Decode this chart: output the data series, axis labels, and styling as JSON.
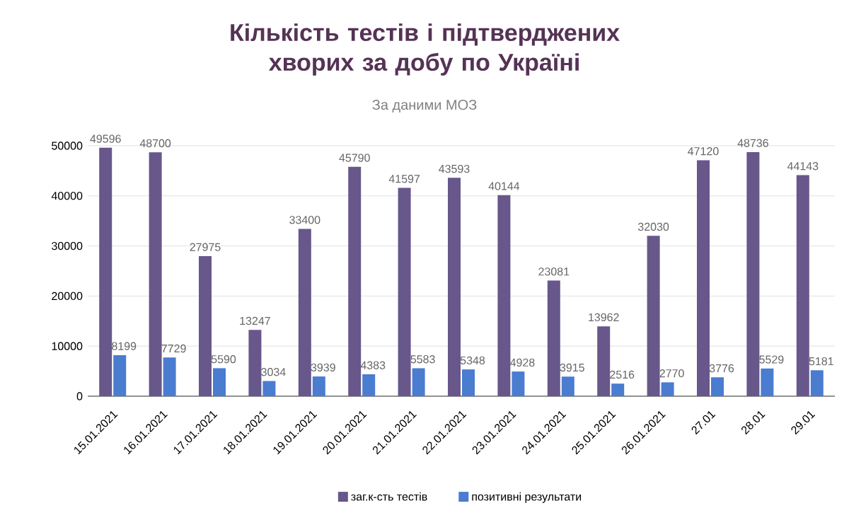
{
  "chart_data": {
    "type": "bar",
    "title": "Кількість тестів і підтверджених хворих за добу по Україні",
    "subtitle": "За даними МОЗ",
    "categories": [
      "15.01.2021",
      "16.01.2021",
      "17.01.2021",
      "18.01.2021",
      "19.01.2021",
      "20.01.2021",
      "21.01.2021",
      "22.01.2021",
      "23.01.2021",
      "24.01.2021",
      "25.01.2021",
      "26.01.2021",
      "27.01",
      "28.01",
      "29.01"
    ],
    "series": [
      {
        "name": "заг.к-сть тестів",
        "color": "#67578a",
        "values": [
          49596,
          48700,
          27975,
          13247,
          33400,
          45790,
          41597,
          43593,
          40144,
          23081,
          13962,
          32030,
          47120,
          48736,
          44143
        ]
      },
      {
        "name": "позитивні результати",
        "color": "#4a7cd0",
        "values": [
          8199,
          7729,
          5590,
          3034,
          3939,
          4383,
          5583,
          5348,
          4928,
          3915,
          2516,
          2770,
          3776,
          5529,
          5181
        ]
      }
    ],
    "ylim": [
      0,
      50000
    ],
    "yticks": [
      0,
      10000,
      20000,
      30000,
      40000,
      50000
    ],
    "grid": "y",
    "legend": "bottom",
    "data_labels": true
  }
}
